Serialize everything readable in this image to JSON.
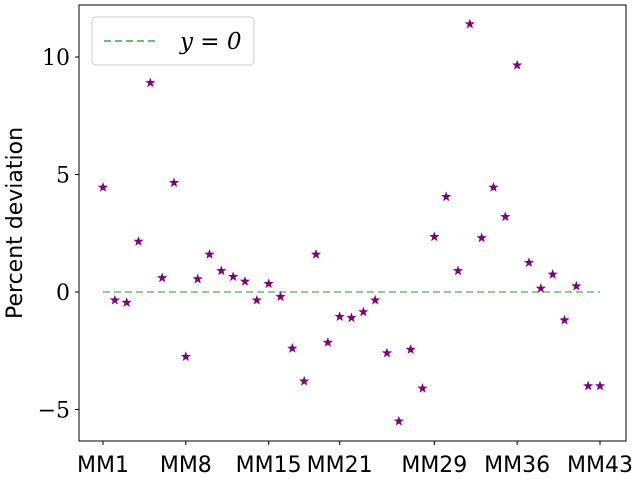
{
  "chart_data": {
    "type": "scatter",
    "ylabel": "Percent deviation",
    "xlabel": "",
    "ylim": [
      -6.3,
      12.3
    ],
    "yticks": [
      -5,
      0,
      5,
      10
    ],
    "ytick_labels": [
      "−5",
      "0",
      "5",
      "10"
    ],
    "grid": false,
    "legend_position": "top-left",
    "x": [
      1,
      2,
      3,
      4,
      5,
      6,
      7,
      8,
      9,
      10,
      11,
      12,
      13,
      14,
      15,
      16,
      17,
      18,
      19,
      20,
      21,
      22,
      23,
      24,
      25,
      26,
      27,
      28,
      29,
      30,
      31,
      32,
      33,
      34,
      35,
      36,
      37,
      38,
      39,
      40,
      41,
      42,
      43
    ],
    "xtick_positions": [
      1,
      8,
      15,
      21,
      29,
      36,
      43
    ],
    "xtick_labels": [
      "MM1",
      "MM8",
      "MM15",
      "MM21",
      "MM29",
      "MM36",
      "MM43"
    ],
    "series": [
      {
        "type": "scatter",
        "marker": "star",
        "color": "#800080",
        "values": [
          4.45,
          -0.35,
          -0.45,
          2.15,
          8.9,
          0.6,
          4.65,
          -2.75,
          0.55,
          1.6,
          0.9,
          0.65,
          0.45,
          -0.35,
          0.35,
          -0.2,
          -2.4,
          -3.8,
          1.6,
          -2.15,
          -1.05,
          -1.1,
          -0.85,
          -0.35,
          -2.6,
          -5.5,
          -2.45,
          -4.1,
          2.35,
          4.05,
          0.9,
          11.4,
          2.3,
          4.45,
          3.2,
          9.65,
          1.25,
          0.15,
          0.75,
          -1.2,
          0.25,
          -4.0,
          -4.0
        ]
      },
      {
        "name": "y = 0",
        "type": "line",
        "style": "dashed",
        "color": "#6abf69",
        "x_range": [
          1,
          43
        ],
        "y": 0
      }
    ]
  }
}
